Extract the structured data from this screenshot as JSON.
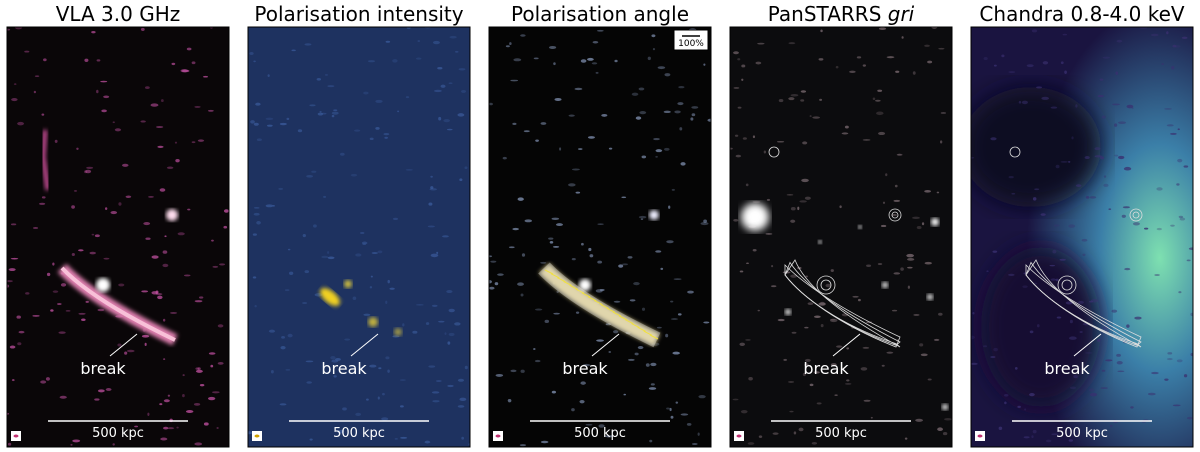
{
  "panels": [
    {
      "title": "VLA 3.0 GHz",
      "annotation": "break",
      "scale_bar": "500 kpc"
    },
    {
      "title": "Polarisation intensity",
      "annotation": "break",
      "scale_bar": "500 kpc"
    },
    {
      "title": "Polarisation angle",
      "annotation": "break",
      "scale_bar": "500 kpc",
      "legend": "100%"
    },
    {
      "title": "PanSTARRS",
      "title_italic": "gri",
      "annotation": "break",
      "scale_bar": "500 kpc"
    },
    {
      "title": "Chandra 0.8-4.0 keV",
      "annotation": "break",
      "scale_bar": "500 kpc"
    }
  ]
}
